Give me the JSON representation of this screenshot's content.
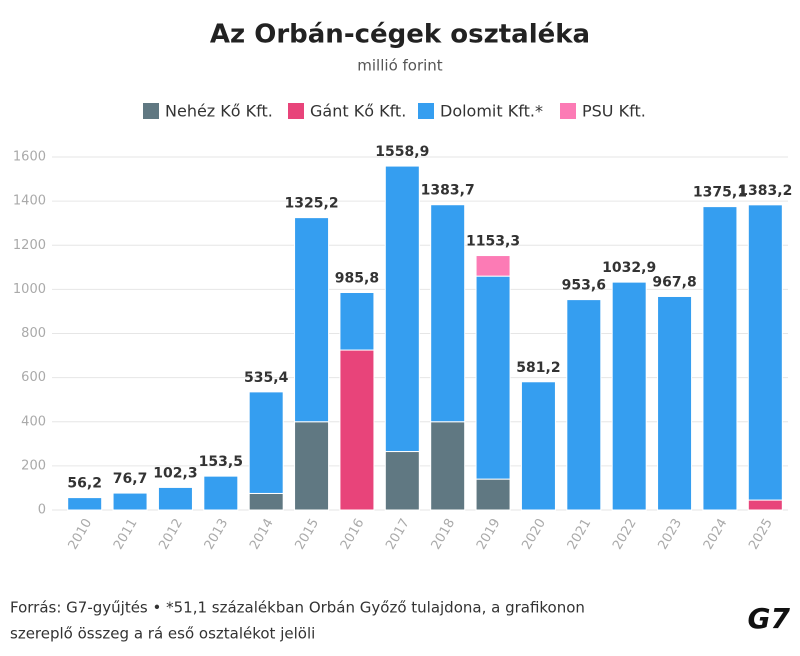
{
  "chart_data": {
    "type": "stacked_bar",
    "title": "Az Orbán-cégek osztaléka",
    "subtitle": "millió forint",
    "categories": [
      "2010",
      "2011",
      "2012",
      "2013",
      "2014",
      "2015",
      "2016",
      "2017",
      "2018",
      "2019",
      "2020",
      "2021",
      "2022",
      "2023",
      "2024",
      "2025"
    ],
    "series": [
      {
        "name": "Nehéz Kő Kft.",
        "color": "#607882",
        "values": [
          null,
          null,
          null,
          null,
          75,
          400,
          null,
          265,
          400,
          140,
          null,
          null,
          null,
          null,
          null,
          null
        ]
      },
      {
        "name": "Gánt Kő Kft.",
        "color": "#e8447a",
        "values": [
          null,
          null,
          null,
          null,
          null,
          null,
          725,
          null,
          null,
          null,
          null,
          null,
          null,
          null,
          null,
          45
        ]
      },
      {
        "name": "Dolomit Kft.*",
        "color": "#359ef0",
        "values": [
          56.2,
          76.7,
          102.3,
          153.5,
          460.4,
          925.2,
          260.8,
          1293.9,
          983.7,
          920,
          581.2,
          953.6,
          1032.9,
          967.8,
          1375.1,
          1338.2
        ]
      },
      {
        "name": "PSU Kft.",
        "color": "#fc7bb5",
        "values": [
          null,
          null,
          null,
          null,
          null,
          null,
          null,
          null,
          null,
          93.3,
          null,
          null,
          null,
          null,
          null,
          null
        ]
      }
    ],
    "total_labels": [
      "56,2",
      "76,7",
      "102,3",
      "153,5",
      "535,4",
      "1325,2",
      "985,8",
      "1558,9",
      "1383,7",
      "1153,3",
      "581,2",
      "953,6",
      "1032,9",
      "967,8",
      "1375,1",
      "1383,2"
    ],
    "ylim": [
      0,
      1600
    ],
    "yticks": [
      0,
      200,
      400,
      600,
      800,
      1000,
      1200,
      1400,
      1600
    ],
    "grid": true,
    "note": [
      "Forrás: G7-gyűjtés • *51,1 százalékban Orbán Győző tulajdona, a grafikonon",
      "szereplő összeg a rá eső osztalékot jelöli"
    ],
    "logo": "G7"
  }
}
